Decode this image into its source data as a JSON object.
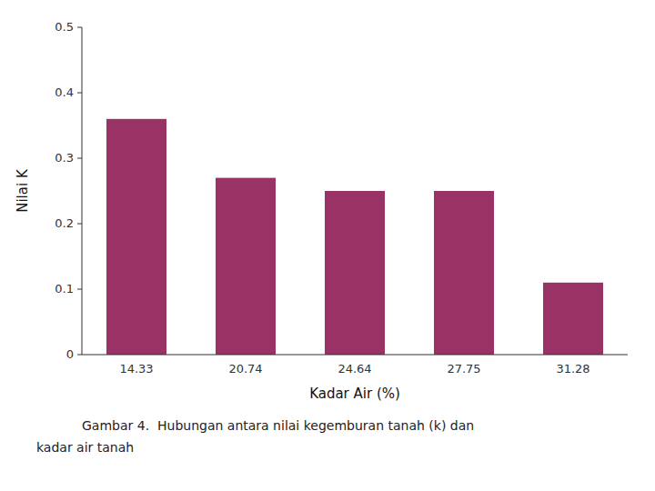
{
  "chart_data": {
    "type": "bar",
    "categories": [
      "14.33",
      "20.74",
      "24.64",
      "27.75",
      "31.28"
    ],
    "values": [
      0.36,
      0.27,
      0.25,
      0.25,
      0.11
    ],
    "color": "#993366",
    "xlabel": "Kadar Air (%)",
    "ylabel": "Nilai K",
    "ylim": [
      0,
      0.5
    ],
    "yticks": [
      0,
      0.1,
      0.2,
      0.3,
      0.4,
      0.5
    ],
    "grid": false,
    "annotations": [
      "Gambar 4.  Hubungan antara nilai kegemburan tanah (k) dan",
      "kadar air tanah"
    ]
  }
}
